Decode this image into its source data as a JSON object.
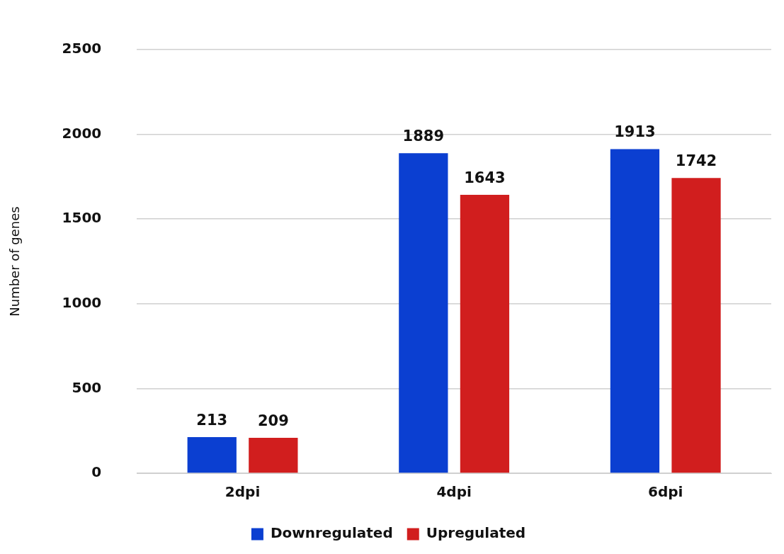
{
  "chart_data": {
    "type": "bar",
    "ylabel": "Number of genes",
    "categories": [
      "2dpi",
      "4dpi",
      "6dpi"
    ],
    "series": [
      {
        "name": "Downregulated",
        "color": "#0b3fd1",
        "values": [
          213,
          1889,
          1913
        ]
      },
      {
        "name": "Upregulated",
        "color": "#d11e1e",
        "values": [
          209,
          1643,
          1742
        ]
      }
    ],
    "ylim": [
      0,
      2500
    ],
    "yticks": [
      0,
      500,
      1000,
      1500,
      2000,
      2500
    ],
    "grid": "y",
    "legend": "bottom",
    "data_labels": true
  }
}
